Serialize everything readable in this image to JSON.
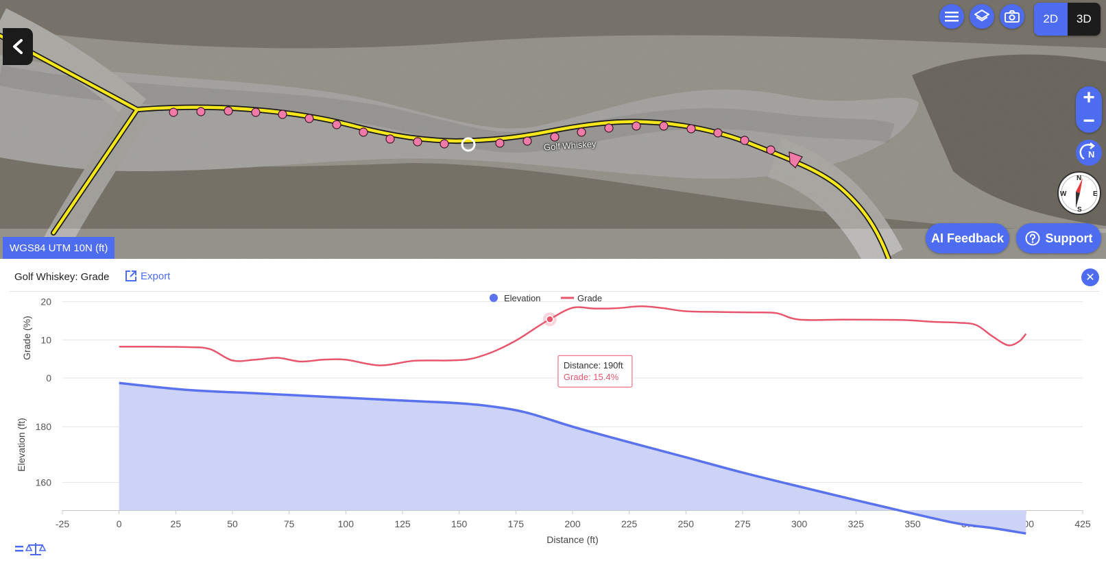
{
  "map": {
    "crs_label": "WGS84 UTM 10N (ft)",
    "route_label": "Golf Whiskey",
    "controls": {
      "menu_icon": "menu-icon",
      "layers_icon": "layers-icon",
      "camera_icon": "camera-icon",
      "mode_2d": "2D",
      "mode_3d": "3D",
      "active_mode": "2D",
      "zoom_in": "+",
      "zoom_out": "−",
      "north_label": "N",
      "compass": {
        "n": "N",
        "e": "E",
        "s": "S",
        "w": "W"
      }
    },
    "buttons": {
      "ai_feedback": "AI Feedback",
      "support": "Support"
    },
    "colors": {
      "route": "#f5e71b",
      "vertex": "#f07aa8",
      "accent": "#4d6cf0"
    }
  },
  "panel": {
    "title": "Golf Whiskey: Grade",
    "export_label": "Export",
    "close_icon": "close-icon",
    "scale_icon": "scale-icon"
  },
  "chart_data": {
    "type": "line",
    "legend": [
      {
        "name": "Elevation",
        "color": "#5a72ee",
        "marker": "circle"
      },
      {
        "name": "Grade",
        "color": "#e8566e",
        "marker": "line"
      }
    ],
    "xlabel": "Distance (ft)",
    "xlim": [
      -25,
      425
    ],
    "xticks": [
      -25,
      0,
      25,
      50,
      75,
      100,
      125,
      150,
      175,
      200,
      225,
      250,
      275,
      300,
      325,
      350,
      375,
      400,
      425
    ],
    "grade_axis": {
      "label": "Grade (%)",
      "ticks": [
        0,
        10,
        20
      ],
      "ylim": [
        0,
        21
      ]
    },
    "elevation_axis": {
      "label": "Elevation (ft)",
      "ticks": [
        160,
        180
      ],
      "ylim": [
        150,
        197
      ]
    },
    "series": [
      {
        "name": "Grade",
        "color": "#e8566e",
        "x": [
          0,
          15,
          30,
          40,
          50,
          60,
          70,
          80,
          90,
          100,
          115,
          130,
          145,
          155,
          165,
          175,
          185,
          190,
          200,
          210,
          220,
          230,
          240,
          250,
          265,
          280,
          290,
          300,
          320,
          345,
          360,
          370,
          378,
          385,
          392,
          397,
          400
        ],
        "y": [
          8.2,
          8.2,
          8.1,
          7.6,
          4.6,
          4.8,
          5.3,
          4.3,
          4.8,
          4.8,
          3.3,
          4.5,
          4.6,
          5.0,
          6.9,
          9.8,
          13.6,
          15.4,
          18.4,
          18.2,
          18.3,
          18.8,
          18.3,
          17.5,
          17.3,
          17.2,
          17.0,
          15.3,
          15.3,
          15.2,
          14.7,
          14.5,
          13.9,
          11.0,
          8.6,
          9.6,
          11.6
        ]
      },
      {
        "name": "Elevation",
        "color": "#5a72ee",
        "x": [
          0,
          30,
          60,
          90,
          120,
          150,
          165,
          180,
          200,
          225,
          250,
          275,
          300,
          325,
          350,
          370,
          385,
          400
        ],
        "y": [
          195.7,
          193.2,
          192.0,
          190.8,
          189.6,
          188.4,
          187.2,
          185.0,
          180.0,
          174.4,
          169.0,
          163.5,
          158.5,
          153.6,
          148.8,
          145.2,
          143.6,
          141.6
        ]
      }
    ],
    "tooltip": {
      "distance": "Distance: 190ft",
      "grade": "Grade: 15.4%",
      "x": 190,
      "y": 15.4
    }
  }
}
